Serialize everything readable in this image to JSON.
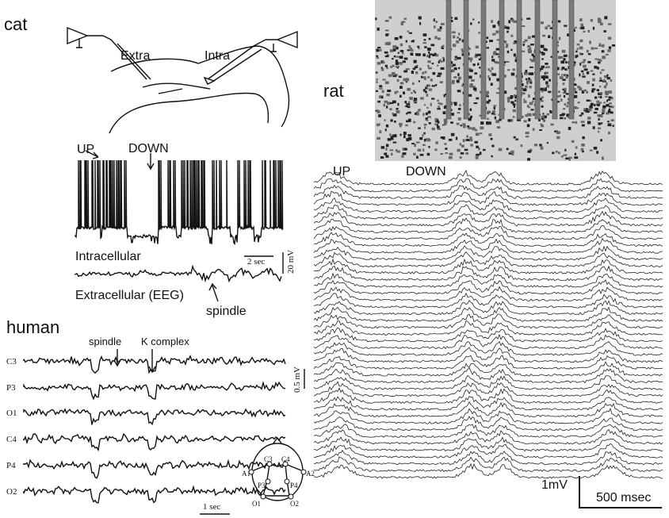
{
  "cat": {
    "label": "cat",
    "electrodes": [
      "Extra",
      "Intra"
    ],
    "states": [
      "UP",
      "DOWN"
    ],
    "traces": [
      "Intracellular",
      "Extracellular (EEG)"
    ],
    "annotation": "spindle",
    "scale": {
      "time": "2 sec",
      "voltage": "20 mV"
    }
  },
  "human": {
    "label": "human",
    "annotations": [
      "spindle",
      "K complex"
    ],
    "channels": [
      "C3",
      "P3",
      "O1",
      "C4",
      "P4",
      "O2"
    ],
    "scale": {
      "voltage": "0.5 mV",
      "time": "1 sec"
    },
    "montage": {
      "electrodes": [
        "A1",
        "C3",
        "C4",
        "A2",
        "P3",
        "P4",
        "O1",
        "O2"
      ]
    }
  },
  "rat": {
    "label": "rat",
    "states": [
      "UP",
      "DOWN"
    ],
    "scale": {
      "voltage": "1mV",
      "time": "500 msec"
    }
  }
}
